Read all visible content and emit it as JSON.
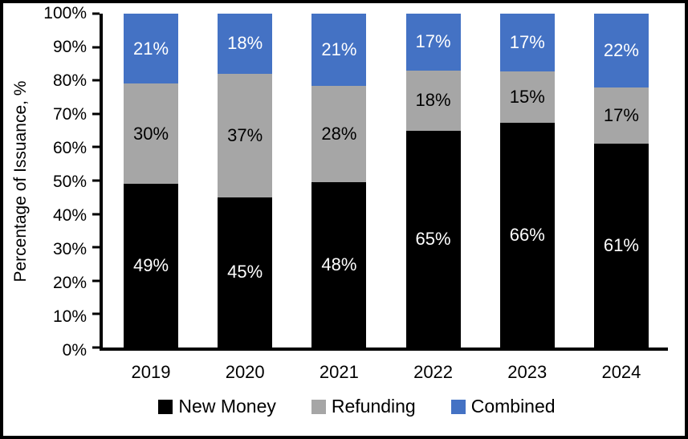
{
  "figure": {
    "background": "#FFFFFF",
    "frame_border_color": "#000000",
    "axis_color": "#000000"
  },
  "chart_data": {
    "type": "bar",
    "stacked": true,
    "title": "",
    "xlabel": "",
    "ylabel": "Percentage of Issuance, %",
    "ylim": [
      0,
      100
    ],
    "ytick_values": [
      0,
      10,
      20,
      30,
      40,
      50,
      60,
      70,
      80,
      90,
      100
    ],
    "ytick_labels": [
      "0%",
      "10%",
      "20%",
      "30%",
      "40%",
      "50%",
      "60%",
      "70%",
      "80%",
      "90%",
      "100%"
    ],
    "categories": [
      "2019",
      "2020",
      "2021",
      "2022",
      "2023",
      "2024"
    ],
    "series": [
      {
        "name": "New Money",
        "color": "#000000",
        "label_color": "#FFFFFF",
        "values": [
          49,
          45,
          48,
          65,
          66,
          61
        ],
        "labels": [
          "49%",
          "45%",
          "48%",
          "65%",
          "66%",
          "61%"
        ]
      },
      {
        "name": "Refunding",
        "color": "#A6A6A6",
        "label_color": "#000000",
        "values": [
          30,
          37,
          28,
          18,
          15,
          17
        ],
        "labels": [
          "30%",
          "37%",
          "28%",
          "18%",
          "15%",
          "17%"
        ]
      },
      {
        "name": "Combined",
        "color": "#4472C4",
        "label_color": "#FFFFFF",
        "values": [
          21,
          18,
          21,
          17,
          17,
          22
        ],
        "labels": [
          "21%",
          "18%",
          "21%",
          "17%",
          "17%",
          "22%"
        ]
      }
    ],
    "legend_position": "bottom",
    "grid": false
  }
}
